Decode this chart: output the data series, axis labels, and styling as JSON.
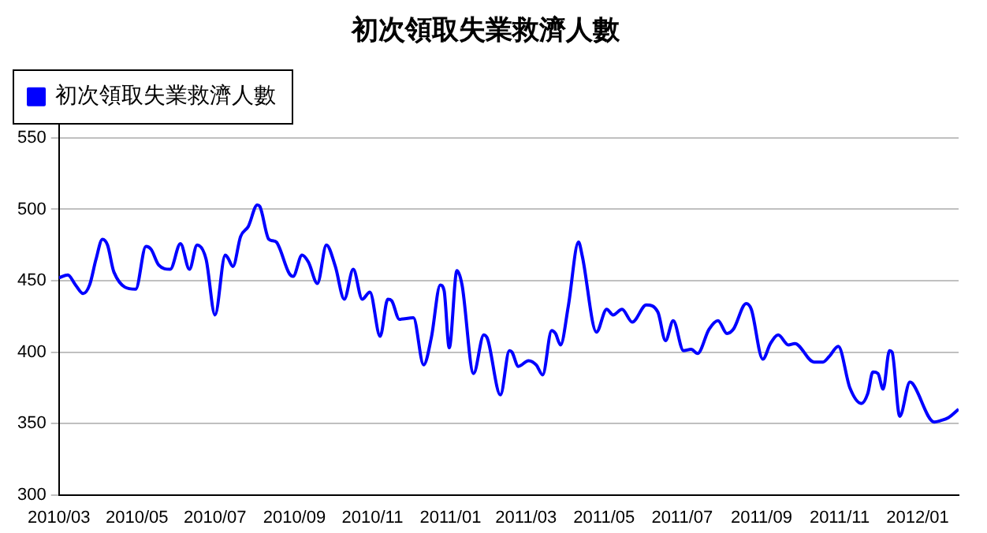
{
  "chart_data": {
    "type": "line",
    "title": "初次領取失業救濟人數",
    "legend": "top left",
    "grid": "y",
    "marker": "none",
    "line_style": "solid",
    "xlim": [
      "2010-03-01",
      "2012-02-02"
    ],
    "xticks": [
      {
        "value": "2010-03-01",
        "label": "2010/03"
      },
      {
        "value": "2010-05-01",
        "label": "2010/05"
      },
      {
        "value": "2010-07-01",
        "label": "2010/07"
      },
      {
        "value": "2010-09-01",
        "label": "2010/09"
      },
      {
        "value": "2010-11-01",
        "label": "2010/11"
      },
      {
        "value": "2011-01-01",
        "label": "2011/01"
      },
      {
        "value": "2011-03-01",
        "label": "2011/03"
      },
      {
        "value": "2011-05-01",
        "label": "2011/05"
      },
      {
        "value": "2011-07-01",
        "label": "2011/07"
      },
      {
        "value": "2011-09-01",
        "label": "2011/09"
      },
      {
        "value": "2011-11-01",
        "label": "2011/11"
      },
      {
        "value": "2012-01-01",
        "label": "2012/01"
      }
    ],
    "ylim": [
      300,
      560
    ],
    "yticks": [
      300,
      350,
      400,
      450,
      500,
      550
    ],
    "x": [
      "2010-03-01",
      "2010-03-08",
      "2010-03-14",
      "2010-03-20",
      "2010-03-25",
      "2010-03-30",
      "2010-04-04",
      "2010-04-08",
      "2010-04-13",
      "2010-04-30",
      "2010-05-08",
      "2010-05-12",
      "2010-05-18",
      "2010-05-27",
      "2010-06-04",
      "2010-06-11",
      "2010-06-17",
      "2010-06-24",
      "2010-07-01",
      "2010-07-09",
      "2010-07-11",
      "2010-07-15",
      "2010-07-21",
      "2010-07-27",
      "2010-08-03",
      "2010-08-05",
      "2010-08-12",
      "2010-08-15",
      "2010-08-18",
      "2010-08-28",
      "2010-08-31",
      "2010-09-07",
      "2010-09-12",
      "2010-09-19",
      "2010-09-26",
      "2010-10-03",
      "2010-10-10",
      "2010-10-17",
      "2010-10-24",
      "2010-10-30",
      "2010-11-07",
      "2010-11-13",
      "2010-11-16",
      "2010-11-22",
      "2010-12-03",
      "2010-12-11",
      "2010-12-17",
      "2010-12-24",
      "2010-12-27",
      "2010-12-31",
      "2011-01-06",
      "2011-01-10",
      "2011-01-19",
      "2011-01-27",
      "2011-01-30",
      "2011-02-09",
      "2011-02-16",
      "2011-02-18",
      "2011-02-23",
      "2011-03-03",
      "2011-03-09",
      "2011-03-14",
      "2011-03-21",
      "2011-03-24",
      "2011-03-28",
      "2011-04-03",
      "2011-04-11",
      "2011-04-14",
      "2011-04-25",
      "2011-05-03",
      "2011-05-08",
      "2011-05-15",
      "2011-05-23",
      "2011-06-03",
      "2011-06-12",
      "2011-06-18",
      "2011-06-24",
      "2011-07-02",
      "2011-07-08",
      "2011-07-13",
      "2011-07-22",
      "2011-07-29",
      "2011-08-05",
      "2011-08-10",
      "2011-08-20",
      "2011-08-24",
      "2011-09-02",
      "2011-09-08",
      "2011-09-14",
      "2011-09-22",
      "2011-09-27",
      "2011-10-12",
      "2011-10-19",
      "2011-10-24",
      "2011-10-31",
      "2011-11-09",
      "2011-11-18",
      "2011-11-23",
      "2011-11-27",
      "2011-12-01",
      "2011-12-05",
      "2011-12-10",
      "2011-12-12",
      "2011-12-18",
      "2011-12-26",
      "2011-12-28",
      "2012-01-14",
      "2012-01-19",
      "2012-01-25",
      "2012-02-02"
    ],
    "series": [
      {
        "name": "初次領取失業救濟人數",
        "color": "#0000ff",
        "values": [
          452,
          454,
          447,
          441,
          447,
          465,
          479,
          475,
          456,
          444,
          474,
          472,
          461,
          458,
          476,
          458,
          475,
          465,
          426,
          468,
          466,
          460,
          481,
          488,
          503,
          502,
          479,
          478,
          477,
          455,
          453,
          468,
          463,
          448,
          475,
          460,
          437,
          458,
          437,
          442,
          411,
          437,
          436,
          423,
          424,
          391,
          410,
          447,
          443,
          403,
          457,
          447,
          385,
          412,
          409,
          370,
          401,
          400,
          390,
          394,
          391,
          384,
          415,
          413,
          405,
          432,
          477,
          467,
          414,
          430,
          426,
          430,
          421,
          433,
          428,
          408,
          422,
          401,
          402,
          399,
          416,
          422,
          413,
          416,
          434,
          430,
          395,
          406,
          412,
          405,
          406,
          393,
          393,
          397,
          404,
          375,
          364,
          371,
          386,
          385,
          374,
          401,
          400,
          355,
          379,
          378,
          351,
          352,
          354,
          360
        ]
      }
    ]
  }
}
